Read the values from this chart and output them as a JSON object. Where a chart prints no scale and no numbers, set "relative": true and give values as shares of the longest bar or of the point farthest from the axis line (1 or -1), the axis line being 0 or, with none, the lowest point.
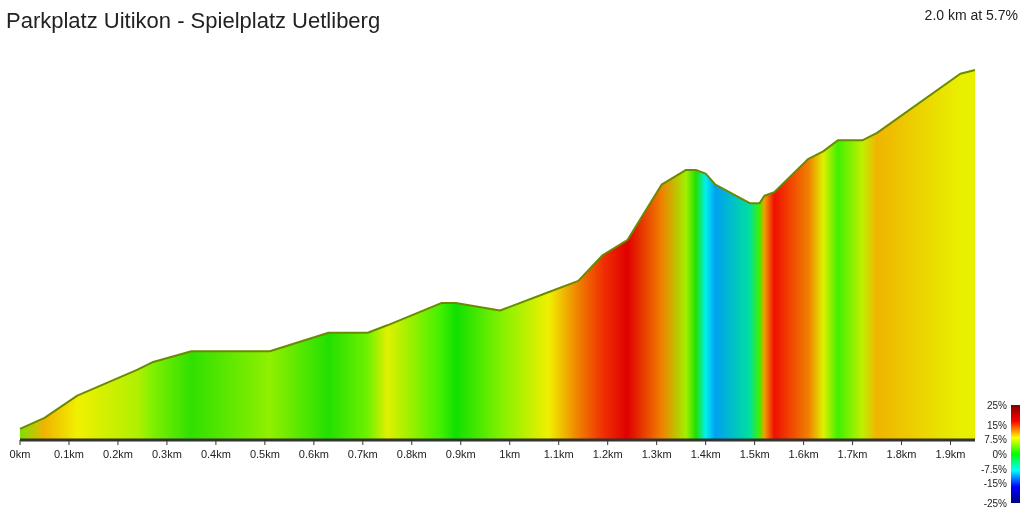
{
  "chart_data": {
    "type": "area",
    "title": "Parkplatz Uitikon - Spielplatz Uetliberg",
    "subtitle": "2.0 km at 5.7%",
    "relative": true,
    "x": [
      0,
      0.05,
      0.117,
      0.24,
      0.27,
      0.35,
      0.51,
      0.63,
      0.71,
      0.75,
      0.86,
      0.89,
      0.98,
      1.08,
      1.14,
      1.19,
      1.24,
      1.31,
      1.36,
      1.38,
      1.4,
      1.42,
      1.49,
      1.51,
      1.52,
      1.54,
      1.61,
      1.64,
      1.67,
      1.72,
      1.75,
      1.92,
      1.95
    ],
    "values": [
      0.03,
      0.06,
      0.12,
      0.19,
      0.21,
      0.24,
      0.24,
      0.29,
      0.29,
      0.31,
      0.37,
      0.37,
      0.35,
      0.4,
      0.43,
      0.5,
      0.54,
      0.69,
      0.73,
      0.73,
      0.72,
      0.69,
      0.64,
      0.64,
      0.66,
      0.67,
      0.76,
      0.78,
      0.81,
      0.81,
      0.83,
      0.99,
      1
    ],
    "colors": [
      "#7fe000",
      "#f0b400",
      "#f0f000",
      "#b0f000",
      "#80f000",
      "#30e000",
      "#90f000",
      "#22e000",
      "#70f000",
      "#e0f000",
      "#40f000",
      "#10e000",
      "#80f000",
      "#f0f000",
      "#f08000",
      "#f03000",
      "#e00000",
      "#f08000",
      "#a0f000",
      "#20e000",
      "#00f0f0",
      "#00a0f0",
      "#00e0a0",
      "#40f000",
      "#f0a000",
      "#f01000",
      "#f08000",
      "#e0f000",
      "#40f000",
      "#c0f000",
      "#f0b400",
      "#e8f000",
      "#e8f000"
    ],
    "xlim": [
      0,
      1.95
    ],
    "xticks": [
      {
        "value": 0,
        "label": "0km"
      },
      {
        "value": 0.1,
        "label": "0.1km"
      },
      {
        "value": 0.2,
        "label": "0.2km"
      },
      {
        "value": 0.3,
        "label": "0.3km"
      },
      {
        "value": 0.4,
        "label": "0.4km"
      },
      {
        "value": 0.5,
        "label": "0.5km"
      },
      {
        "value": 0.6,
        "label": "0.6km"
      },
      {
        "value": 0.7,
        "label": "0.7km"
      },
      {
        "value": 0.8,
        "label": "0.8km"
      },
      {
        "value": 0.9,
        "label": "0.9km"
      },
      {
        "value": 1,
        "label": "1km"
      },
      {
        "value": 1.1,
        "label": "1.1km"
      },
      {
        "value": 1.2,
        "label": "1.2km"
      },
      {
        "value": 1.3,
        "label": "1.3km"
      },
      {
        "value": 1.4,
        "label": "1.4km"
      },
      {
        "value": 1.5,
        "label": "1.5km"
      },
      {
        "value": 1.6,
        "label": "1.6km"
      },
      {
        "value": 1.7,
        "label": "1.7km"
      },
      {
        "value": 1.8,
        "label": "1.8km"
      },
      {
        "value": 1.9,
        "label": "1.9km"
      }
    ],
    "clim": [
      -25,
      25
    ],
    "cticks": [
      {
        "value": 25,
        "label": "25%"
      },
      {
        "value": 15,
        "label": "15%"
      },
      {
        "value": 7.5,
        "label": "7.5%"
      },
      {
        "value": 0,
        "label": "0%"
      },
      {
        "value": -7.5,
        "label": "-7.5%"
      },
      {
        "value": -15,
        "label": "-15%"
      },
      {
        "value": -25,
        "label": "-25%"
      }
    ]
  }
}
